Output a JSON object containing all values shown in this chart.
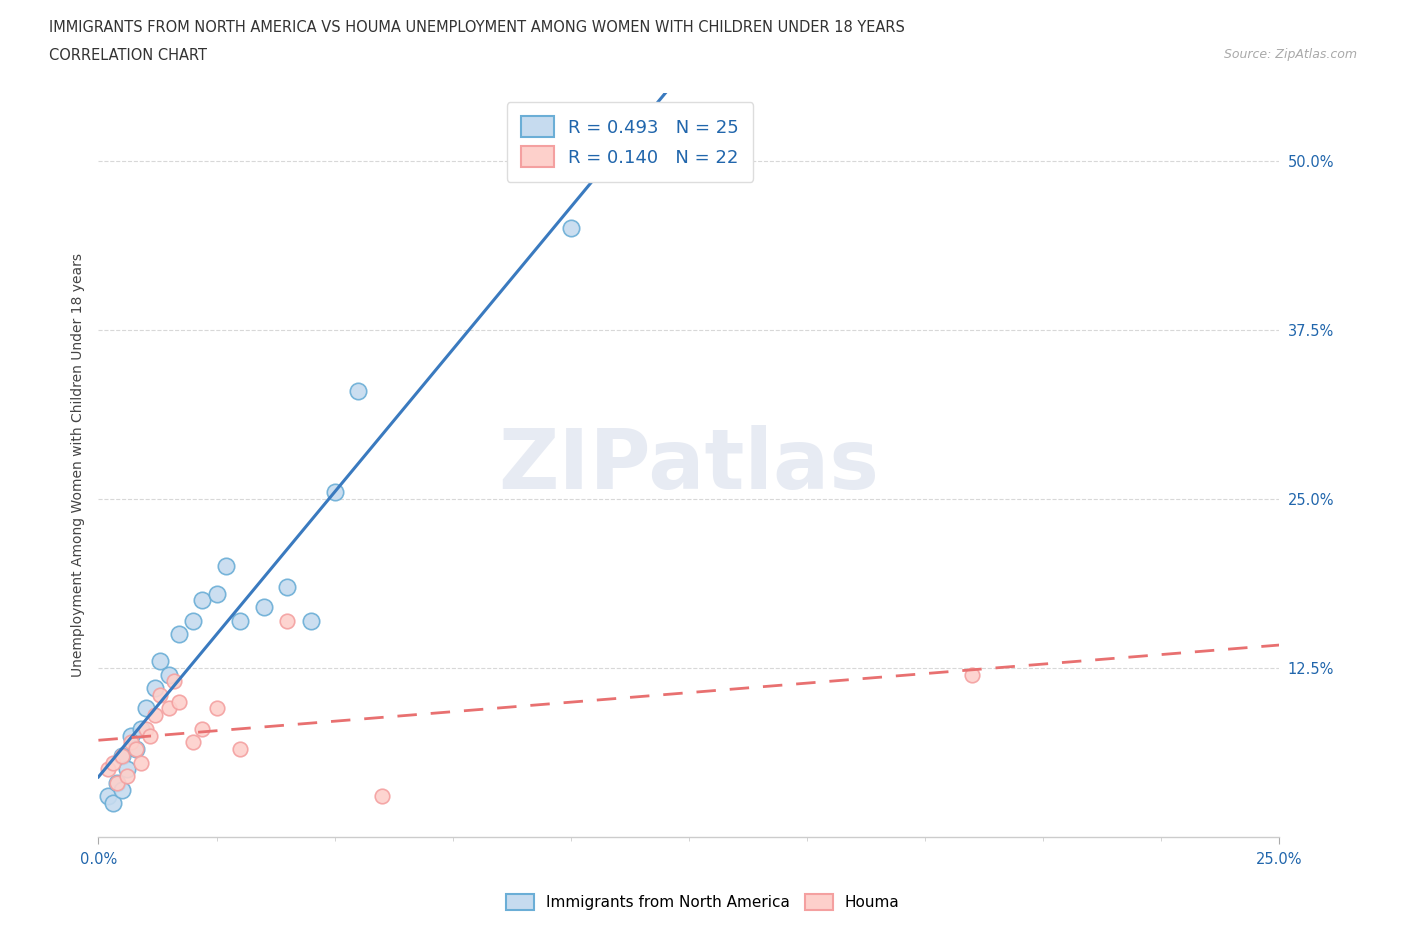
{
  "title_line1": "IMMIGRANTS FROM NORTH AMERICA VS HOUMA UNEMPLOYMENT AMONG WOMEN WITH CHILDREN UNDER 18 YEARS",
  "title_line2": "CORRELATION CHART",
  "source": "Source: ZipAtlas.com",
  "ylabel": "Unemployment Among Women with Children Under 18 years",
  "xlim": [
    0.0,
    0.25
  ],
  "ylim": [
    0.0,
    0.55
  ],
  "blue_edge": "#6baed6",
  "blue_face": "#c6dbef",
  "pink_edge": "#f4a0a0",
  "pink_face": "#fdd0cb",
  "legend_color": "#2166ac",
  "line_blue": "#3a7abf",
  "line_pink": "#e87070",
  "R1": 0.493,
  "N1": 25,
  "R2": 0.14,
  "N2": 22,
  "blue_scatter_x": [
    0.002,
    0.003,
    0.004,
    0.005,
    0.005,
    0.006,
    0.007,
    0.008,
    0.009,
    0.01,
    0.012,
    0.013,
    0.015,
    0.017,
    0.02,
    0.022,
    0.025,
    0.027,
    0.03,
    0.035,
    0.04,
    0.045,
    0.05,
    0.055,
    0.1
  ],
  "blue_scatter_y": [
    0.03,
    0.025,
    0.04,
    0.035,
    0.06,
    0.05,
    0.075,
    0.065,
    0.08,
    0.095,
    0.11,
    0.13,
    0.12,
    0.15,
    0.16,
    0.175,
    0.18,
    0.2,
    0.16,
    0.17,
    0.185,
    0.16,
    0.255,
    0.33,
    0.45
  ],
  "pink_scatter_x": [
    0.002,
    0.003,
    0.004,
    0.005,
    0.006,
    0.007,
    0.008,
    0.009,
    0.01,
    0.011,
    0.012,
    0.013,
    0.015,
    0.016,
    0.017,
    0.02,
    0.022,
    0.025,
    0.03,
    0.04,
    0.06,
    0.185
  ],
  "pink_scatter_y": [
    0.05,
    0.055,
    0.04,
    0.06,
    0.045,
    0.07,
    0.065,
    0.055,
    0.08,
    0.075,
    0.09,
    0.105,
    0.095,
    0.115,
    0.1,
    0.07,
    0.08,
    0.095,
    0.065,
    0.16,
    0.03,
    0.12
  ],
  "watermark": "ZIPatlas",
  "background_color": "#ffffff",
  "grid_color": "#d8d8d8"
}
